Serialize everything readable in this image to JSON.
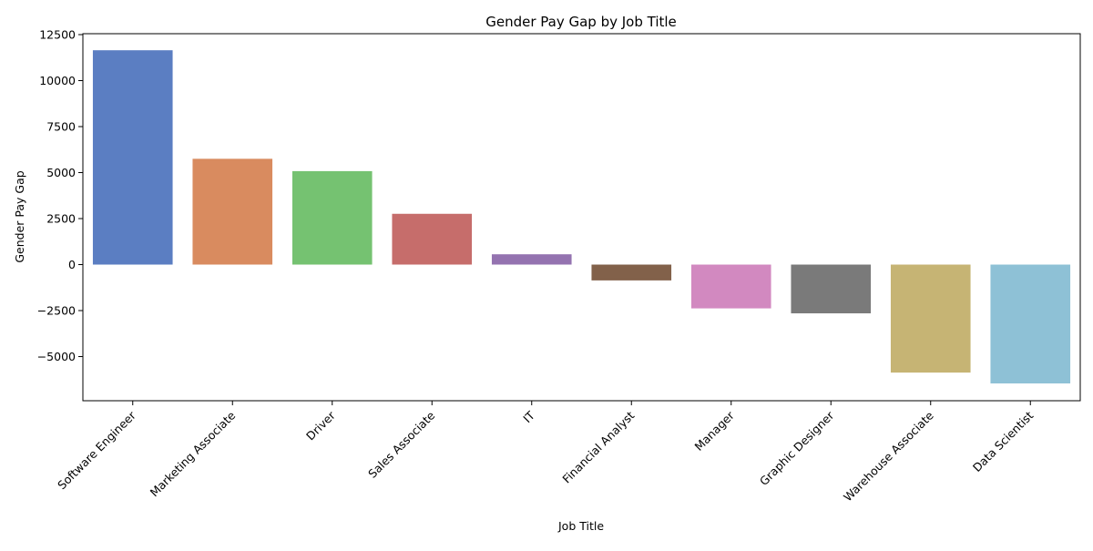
{
  "chart_data": {
    "type": "bar",
    "title": "Gender Pay Gap by Job Title",
    "xlabel": "Job Title",
    "ylabel": "Gender Pay Gap",
    "categories": [
      "Software Engineer",
      "Marketing Associate",
      "Driver",
      "Sales Associate",
      "IT",
      "Financial Analyst",
      "Manager",
      "Graphic Designer",
      "Warehouse Associate",
      "Data Scientist"
    ],
    "values": [
      11650,
      5750,
      5080,
      2760,
      560,
      -860,
      -2380,
      -2650,
      -5870,
      -6460
    ],
    "colors": [
      "#5b7ec2",
      "#d98b5f",
      "#75c271",
      "#c66d6b",
      "#9473b0",
      "#82614a",
      "#d289c0",
      "#7a7a7a",
      "#c6b474",
      "#8ec1d6"
    ],
    "ylim": [
      -7400,
      12550
    ],
    "yticks": [
      -5000,
      -2500,
      0,
      2500,
      5000,
      7500,
      10000,
      12500
    ],
    "ytick_labels": [
      "−5000",
      "−2500",
      "0",
      "2500",
      "5000",
      "7500",
      "10000",
      "12500"
    ],
    "grid": false,
    "legend": "none"
  }
}
